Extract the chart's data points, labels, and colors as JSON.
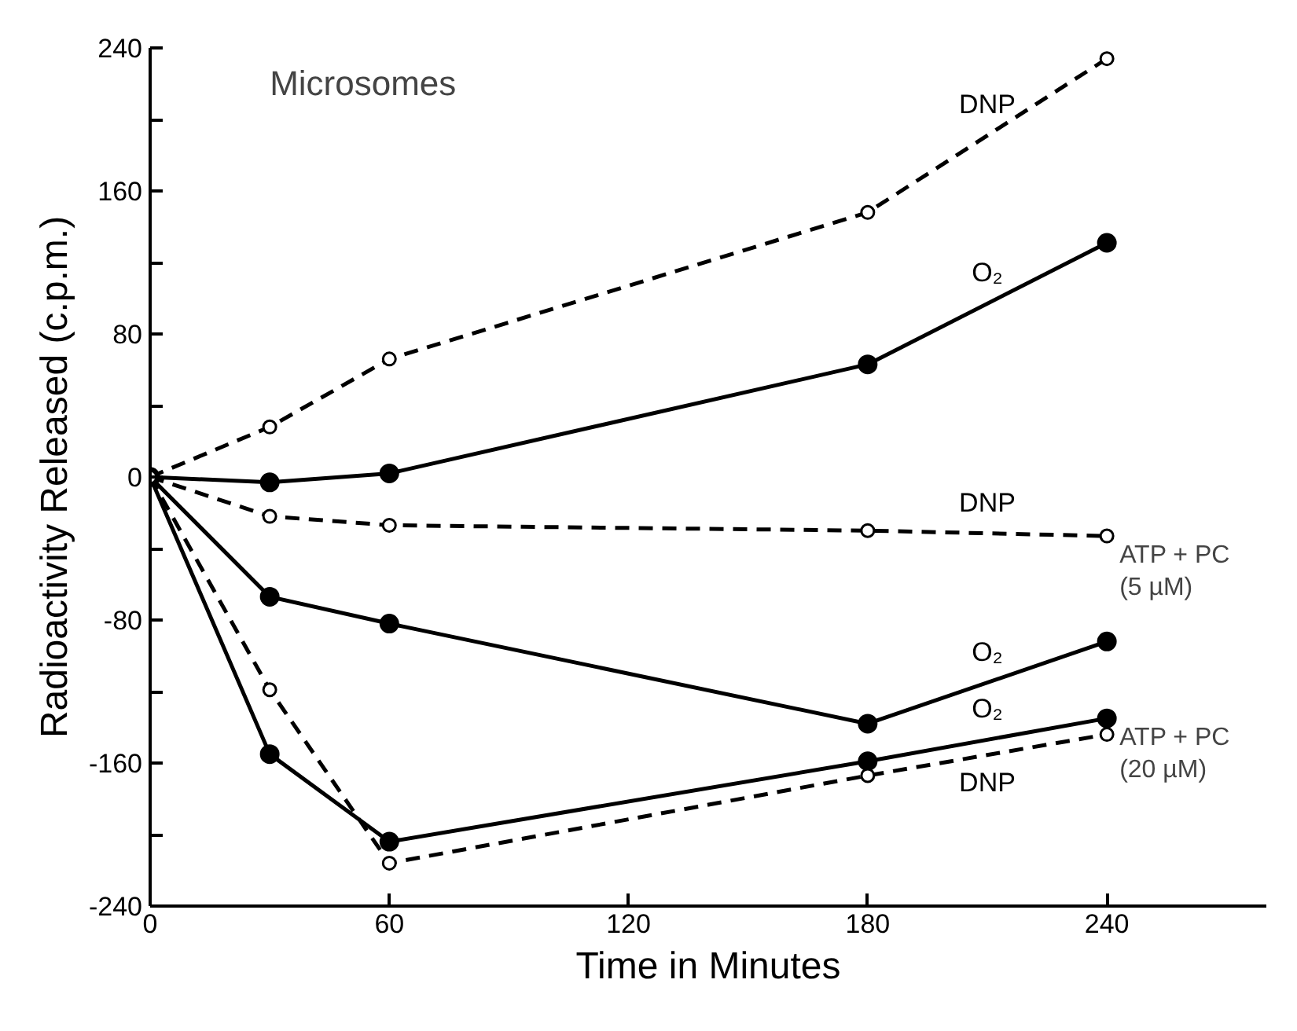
{
  "chart_data": {
    "type": "line",
    "title": "Microsomes",
    "xlabel": "Time in Minutes",
    "ylabel": "Radioactivity Released (c.p.m.)",
    "xlim": [
      0,
      280
    ],
    "ylim": [
      -240,
      240
    ],
    "xticks": [
      0,
      60,
      120,
      180,
      240
    ],
    "yticks": [
      -240,
      {
        "value": -200,
        "label": null
      },
      -160,
      {
        "value": -120,
        "label": null
      },
      -80,
      {
        "value": -40,
        "label": null
      },
      0,
      {
        "value": 40,
        "label": null
      },
      80,
      {
        "value": 120,
        "label": null
      },
      160,
      {
        "value": 200,
        "label": null
      },
      240
    ],
    "x": [
      0,
      30,
      60,
      180,
      240
    ],
    "marker": "circle",
    "grid": false,
    "series": [
      {
        "name": "DNP",
        "color": "#000000",
        "line_style": "dashed",
        "values": [
          0,
          28,
          66,
          148,
          234
        ]
      },
      {
        "name": "O₂",
        "color": "#000000",
        "line_style": "solid",
        "values": [
          0,
          -3,
          2,
          63,
          131
        ]
      },
      {
        "name": "DNP",
        "color": "#000000",
        "line_style": "dashed",
        "values": [
          0,
          -22,
          -27,
          -30,
          -33
        ]
      },
      {
        "name": "O₂",
        "color": "#000000",
        "line_style": "solid",
        "values": [
          0,
          -67,
          -82,
          -138,
          -92
        ]
      },
      {
        "name": "O₂",
        "color": "#000000",
        "line_style": "solid",
        "values": [
          0,
          -155,
          -204,
          -159,
          -135
        ]
      },
      {
        "name": "DNP",
        "color": "#000000",
        "line_style": "dashed",
        "values": [
          0,
          -119,
          -216,
          -167,
          -144
        ]
      }
    ],
    "annotations": [
      {
        "text": "ATP + PC\n(5 µM)",
        "x": 240,
        "y": -33
      },
      {
        "text": "ATP + PC\n(20 µM)",
        "x": 240,
        "y": -135
      }
    ]
  }
}
